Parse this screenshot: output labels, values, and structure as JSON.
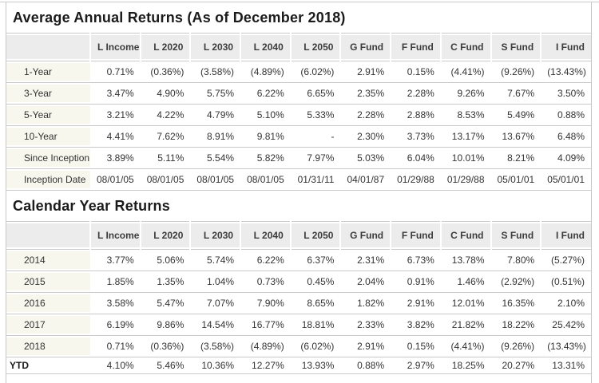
{
  "colors": {
    "header_bg": "#ececec",
    "row_label_bg": "#f7f7ee",
    "border": "#c9c9c9",
    "text": "#333333"
  },
  "table1": {
    "title": "Average Annual Returns (As of December 2018)",
    "columns": [
      "L Income",
      "L 2020",
      "L 2030",
      "L 2040",
      "L 2050",
      "G Fund",
      "F Fund",
      "C Fund",
      "S Fund",
      "I Fund"
    ],
    "rows": [
      {
        "label": "1-Year",
        "values": [
          "0.71%",
          "(0.36%)",
          "(3.58%)",
          "(4.89%)",
          "(6.02%)",
          "2.91%",
          "0.15%",
          "(4.41%)",
          "(9.26%)",
          "(13.43%)"
        ]
      },
      {
        "label": "3-Year",
        "values": [
          "3.47%",
          "4.90%",
          "5.75%",
          "6.22%",
          "6.65%",
          "2.35%",
          "2.28%",
          "9.26%",
          "7.67%",
          "3.50%"
        ]
      },
      {
        "label": "5-Year",
        "values": [
          "3.21%",
          "4.22%",
          "4.79%",
          "5.10%",
          "5.33%",
          "2.28%",
          "2.88%",
          "8.53%",
          "5.49%",
          "0.88%"
        ]
      },
      {
        "label": "10-Year",
        "values": [
          "4.41%",
          "7.62%",
          "8.91%",
          "9.81%",
          "-",
          "2.30%",
          "3.73%",
          "13.17%",
          "13.67%",
          "6.48%"
        ]
      },
      {
        "label": "Since Inception",
        "values": [
          "3.89%",
          "5.11%",
          "5.54%",
          "5.82%",
          "7.97%",
          "5.03%",
          "6.04%",
          "10.01%",
          "8.21%",
          "4.09%"
        ]
      },
      {
        "label": "Inception Date",
        "values": [
          "08/01/05",
          "08/01/05",
          "08/01/05",
          "08/01/05",
          "01/31/11",
          "04/01/87",
          "01/29/88",
          "01/29/88",
          "05/01/01",
          "05/01/01"
        ]
      }
    ]
  },
  "table2": {
    "title": "Calendar Year Returns",
    "columns": [
      "L Income",
      "L 2020",
      "L 2030",
      "L 2040",
      "L 2050",
      "G Fund",
      "F Fund",
      "C Fund",
      "S Fund",
      "I Fund"
    ],
    "rows": [
      {
        "label": "2014",
        "values": [
          "3.77%",
          "5.06%",
          "5.74%",
          "6.22%",
          "6.37%",
          "2.31%",
          "6.73%",
          "13.78%",
          "7.80%",
          "(5.27%)"
        ]
      },
      {
        "label": "2015",
        "values": [
          "1.85%",
          "1.35%",
          "1.04%",
          "0.73%",
          "0.45%",
          "2.04%",
          "0.91%",
          "1.46%",
          "(2.92%)",
          "(0.51%)"
        ]
      },
      {
        "label": "2016",
        "values": [
          "3.58%",
          "5.47%",
          "7.07%",
          "7.90%",
          "8.65%",
          "1.82%",
          "2.91%",
          "12.01%",
          "16.35%",
          "2.10%"
        ]
      },
      {
        "label": "2017",
        "values": [
          "6.19%",
          "9.86%",
          "14.54%",
          "16.77%",
          "18.81%",
          "2.33%",
          "3.82%",
          "21.82%",
          "18.22%",
          "25.42%"
        ]
      },
      {
        "label": "2018",
        "values": [
          "0.71%",
          "(0.36%)",
          "(3.58%)",
          "(4.89%)",
          "(6.02%)",
          "2.91%",
          "0.15%",
          "(4.41%)",
          "(9.26%)",
          "(13.43%)"
        ]
      },
      {
        "label": "YTD",
        "values": [
          "4.10%",
          "5.46%",
          "10.36%",
          "12.27%",
          "13.93%",
          "0.88%",
          "2.97%",
          "18.25%",
          "20.27%",
          "13.31%"
        ],
        "footer": true
      }
    ]
  }
}
